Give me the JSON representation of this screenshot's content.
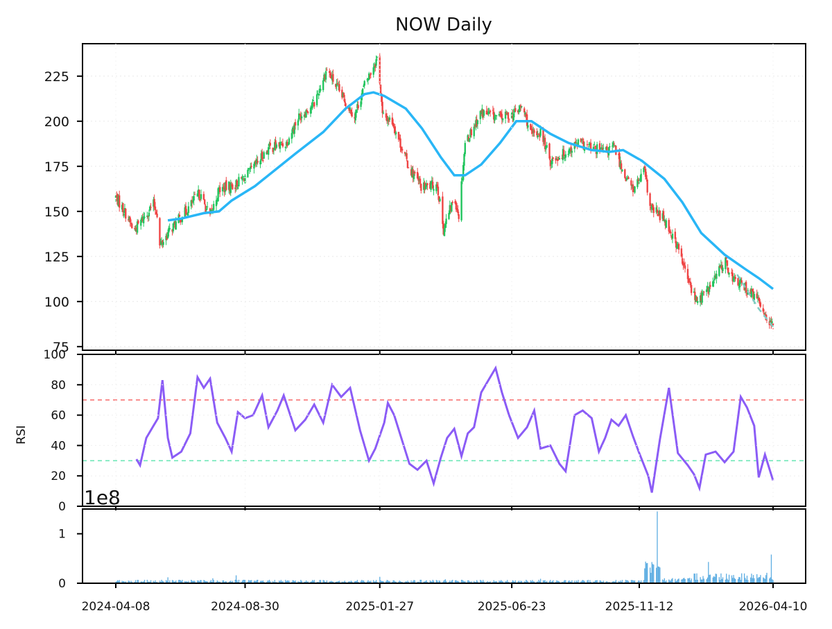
{
  "chart_data": [
    {
      "type": "candlestick",
      "title": "NOW Daily",
      "ylim": [
        73,
        243
      ],
      "yticks": [
        75,
        100,
        125,
        150,
        175,
        200,
        225
      ],
      "colors": {
        "up": "#22c55e",
        "down": "#ef4444",
        "ma": "#29b6f6",
        "trend": "#80cbc4"
      },
      "close_path": [
        [
          "2024-04-08",
          158
        ],
        [
          "2024-04-20",
          148
        ],
        [
          "2024-04-28",
          139
        ],
        [
          "2024-05-08",
          146
        ],
        [
          "2024-05-20",
          154
        ],
        [
          "2024-05-24",
          149
        ],
        [
          "2024-05-26",
          130
        ],
        [
          "2024-06-08",
          140
        ],
        [
          "2024-06-25",
          150
        ],
        [
          "2024-07-10",
          160
        ],
        [
          "2024-07-22",
          147
        ],
        [
          "2024-08-01",
          162
        ],
        [
          "2024-08-20",
          165
        ],
        [
          "2024-09-05",
          172
        ],
        [
          "2024-09-25",
          185
        ],
        [
          "2024-10-15",
          188
        ],
        [
          "2024-10-28",
          202
        ],
        [
          "2024-11-15",
          210
        ],
        [
          "2024-11-29",
          229
        ],
        [
          "2024-12-12",
          217
        ],
        [
          "2024-12-30",
          203
        ],
        [
          "2025-01-10",
          220
        ],
        [
          "2025-01-25",
          236
        ],
        [
          "2025-01-30",
          203
        ],
        [
          "2025-02-10",
          200
        ],
        [
          "2025-02-28",
          175
        ],
        [
          "2025-03-15",
          163
        ],
        [
          "2025-04-01",
          165
        ],
        [
          "2025-04-08",
          140
        ],
        [
          "2025-04-20",
          158
        ],
        [
          "2025-04-25",
          148
        ],
        [
          "2025-05-02",
          188
        ],
        [
          "2025-05-20",
          205
        ],
        [
          "2025-06-10",
          202
        ],
        [
          "2025-06-25",
          204
        ],
        [
          "2025-07-05",
          208
        ],
        [
          "2025-07-15",
          192
        ],
        [
          "2025-07-25",
          194
        ],
        [
          "2025-08-05",
          178
        ],
        [
          "2025-08-20",
          182
        ],
        [
          "2025-09-05",
          188
        ],
        [
          "2025-09-20",
          185
        ],
        [
          "2025-10-05",
          183
        ],
        [
          "2025-10-15",
          186
        ],
        [
          "2025-10-25",
          172
        ],
        [
          "2025-11-05",
          162
        ],
        [
          "2025-11-18",
          172
        ],
        [
          "2025-11-24",
          152
        ],
        [
          "2025-12-10",
          146
        ],
        [
          "2025-12-25",
          130
        ],
        [
          "2026-01-05",
          112
        ],
        [
          "2026-01-15",
          100
        ],
        [
          "2026-01-30",
          108
        ],
        [
          "2026-02-15",
          123
        ],
        [
          "2026-02-25",
          112
        ],
        [
          "2026-03-10",
          108
        ],
        [
          "2026-03-25",
          100
        ],
        [
          "2026-04-10",
          85
        ]
      ],
      "ma": [
        [
          "2024-06-05",
          145
        ],
        [
          "2024-06-20",
          146
        ],
        [
          "2024-07-15",
          149
        ],
        [
          "2024-08-01",
          150
        ],
        [
          "2024-08-15",
          156
        ],
        [
          "2024-09-10",
          164
        ],
        [
          "2024-09-30",
          172
        ],
        [
          "2024-10-25",
          182
        ],
        [
          "2024-11-25",
          194
        ],
        [
          "2024-12-20",
          207
        ],
        [
          "2025-01-10",
          215
        ],
        [
          "2025-01-20",
          216
        ],
        [
          "2025-02-01",
          214
        ],
        [
          "2025-02-25",
          207
        ],
        [
          "2025-03-15",
          196
        ],
        [
          "2025-04-05",
          180
        ],
        [
          "2025-04-20",
          170
        ],
        [
          "2025-05-02",
          170
        ],
        [
          "2025-05-20",
          176
        ],
        [
          "2025-06-10",
          188
        ],
        [
          "2025-06-28",
          200
        ],
        [
          "2025-07-15",
          200
        ],
        [
          "2025-08-05",
          193
        ],
        [
          "2025-08-25",
          188
        ],
        [
          "2025-09-20",
          184
        ],
        [
          "2025-10-10",
          183
        ],
        [
          "2025-10-25",
          184
        ],
        [
          "2025-11-15",
          178
        ],
        [
          "2025-12-10",
          168
        ],
        [
          "2025-12-30",
          155
        ],
        [
          "2026-01-20",
          138
        ],
        [
          "2026-02-15",
          126
        ],
        [
          "2026-03-10",
          118
        ],
        [
          "2026-03-25",
          113
        ],
        [
          "2026-04-10",
          107
        ]
      ],
      "trend": [
        [
          "2026-03-01",
          115
        ],
        [
          "2026-03-25",
          96
        ],
        [
          "2026-04-10",
          86
        ]
      ]
    },
    {
      "type": "line",
      "ylabel": "RSI",
      "ylim": [
        0,
        100
      ],
      "yticks": [
        0,
        20,
        40,
        60,
        80,
        100
      ],
      "overbought": 70,
      "oversold": 30,
      "colors": {
        "line": "#8b5cf6",
        "overbought": "#f87171",
        "oversold": "#6ee7b7"
      },
      "points": [
        [
          "2024-05-01",
          31
        ],
        [
          "2024-05-05",
          27
        ],
        [
          "2024-05-12",
          45
        ],
        [
          "2024-05-20",
          53
        ],
        [
          "2024-05-25",
          58
        ],
        [
          "2024-05-30",
          83
        ],
        [
          "2024-06-05",
          45
        ],
        [
          "2024-06-10",
          32
        ],
        [
          "2024-06-20",
          36
        ],
        [
          "2024-06-30",
          48
        ],
        [
          "2024-07-08",
          85
        ],
        [
          "2024-07-15",
          78
        ],
        [
          "2024-07-22",
          84
        ],
        [
          "2024-07-30",
          55
        ],
        [
          "2024-08-08",
          45
        ],
        [
          "2024-08-15",
          36
        ],
        [
          "2024-08-22",
          62
        ],
        [
          "2024-08-30",
          58
        ],
        [
          "2024-09-08",
          60
        ],
        [
          "2024-09-18",
          73
        ],
        [
          "2024-09-25",
          52
        ],
        [
          "2024-10-05",
          63
        ],
        [
          "2024-10-12",
          73
        ],
        [
          "2024-10-25",
          50
        ],
        [
          "2024-11-05",
          57
        ],
        [
          "2024-11-15",
          67
        ],
        [
          "2024-11-25",
          55
        ],
        [
          "2024-12-05",
          80
        ],
        [
          "2024-12-15",
          72
        ],
        [
          "2024-12-25",
          78
        ],
        [
          "2025-01-05",
          50
        ],
        [
          "2025-01-15",
          30
        ],
        [
          "2025-01-22",
          38
        ],
        [
          "2025-02-01",
          55
        ],
        [
          "2025-02-05",
          68
        ],
        [
          "2025-02-12",
          60
        ],
        [
          "2025-02-20",
          45
        ],
        [
          "2025-03-01",
          28
        ],
        [
          "2025-03-10",
          24
        ],
        [
          "2025-03-20",
          30
        ],
        [
          "2025-03-28",
          15
        ],
        [
          "2025-04-05",
          32
        ],
        [
          "2025-04-12",
          45
        ],
        [
          "2025-04-20",
          51
        ],
        [
          "2025-04-28",
          33
        ],
        [
          "2025-05-05",
          48
        ],
        [
          "2025-05-12",
          52
        ],
        [
          "2025-05-20",
          75
        ],
        [
          "2025-05-27",
          82
        ],
        [
          "2025-06-05",
          91
        ],
        [
          "2025-06-12",
          75
        ],
        [
          "2025-06-20",
          60
        ],
        [
          "2025-06-30",
          45
        ],
        [
          "2025-07-10",
          52
        ],
        [
          "2025-07-18",
          63
        ],
        [
          "2025-07-25",
          38
        ],
        [
          "2025-08-05",
          40
        ],
        [
          "2025-08-15",
          28
        ],
        [
          "2025-08-22",
          23
        ],
        [
          "2025-09-01",
          60
        ],
        [
          "2025-09-10",
          63
        ],
        [
          "2025-09-20",
          58
        ],
        [
          "2025-09-28",
          36
        ],
        [
          "2025-10-05",
          45
        ],
        [
          "2025-10-12",
          57
        ],
        [
          "2025-10-20",
          53
        ],
        [
          "2025-10-28",
          60
        ],
        [
          "2025-11-05",
          46
        ],
        [
          "2025-11-12",
          35
        ],
        [
          "2025-11-22",
          20
        ],
        [
          "2025-11-26",
          9
        ],
        [
          "2025-12-05",
          44
        ],
        [
          "2025-12-15",
          78
        ],
        [
          "2025-12-25",
          35
        ],
        [
          "2026-01-05",
          27
        ],
        [
          "2026-01-12",
          21
        ],
        [
          "2026-01-18",
          12
        ],
        [
          "2026-01-25",
          34
        ],
        [
          "2026-02-05",
          36
        ],
        [
          "2026-02-15",
          29
        ],
        [
          "2026-02-25",
          36
        ],
        [
          "2026-03-05",
          72
        ],
        [
          "2026-03-12",
          65
        ],
        [
          "2026-03-20",
          53
        ],
        [
          "2026-03-25",
          19
        ],
        [
          "2026-04-01",
          34
        ],
        [
          "2026-04-10",
          17
        ]
      ]
    },
    {
      "type": "bar",
      "multiplier_label": "1e8",
      "ylim": [
        0,
        1.5
      ],
      "yticks": [
        0,
        1
      ],
      "color": "#5dade2",
      "spikes": [
        [
          "2024-06-05",
          0.12
        ],
        [
          "2024-07-25",
          0.1
        ],
        [
          "2024-08-20",
          0.16
        ],
        [
          "2024-10-20",
          0.09
        ],
        [
          "2025-01-27",
          0.13
        ],
        [
          "2025-04-10",
          0.08
        ],
        [
          "2025-05-10",
          0.11
        ],
        [
          "2025-07-25",
          0.09
        ],
        [
          "2025-11-25",
          0.21
        ],
        [
          "2025-12-02",
          1.45
        ],
        [
          "2026-01-28",
          0.43
        ],
        [
          "2026-04-08",
          0.58
        ]
      ]
    }
  ],
  "x_axis": {
    "start": "2024-04-08",
    "end": "2026-04-10",
    "ticks": [
      "2024-04-08",
      "2024-08-30",
      "2025-01-27",
      "2025-06-23",
      "2025-11-12",
      "2026-04-10"
    ]
  }
}
